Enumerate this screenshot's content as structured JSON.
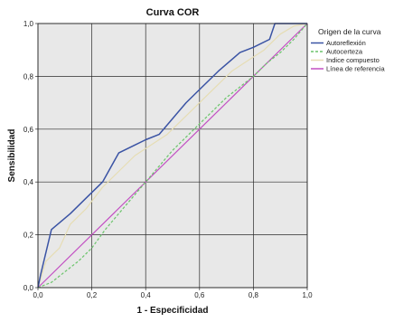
{
  "chart_data": {
    "type": "line",
    "title": "Curva COR",
    "xlabel": "1 - Especificidad",
    "ylabel": "Sensibilidad",
    "xlim": [
      0,
      1
    ],
    "ylim": [
      0,
      1
    ],
    "xticks": [
      "0,0",
      "0,2",
      "0,4",
      "0,6",
      "0,8",
      "1,0"
    ],
    "yticks": [
      "0,0",
      "0,2",
      "0,4",
      "0,6",
      "0,8",
      "1,0"
    ],
    "grid": true,
    "background": "#e8e8e8",
    "legend": {
      "title": "Origen de la curva",
      "position": "top-right",
      "entries": [
        "Autoreflexión",
        "Autocerteza",
        "Indice compuesto",
        "Línea de referencia"
      ]
    },
    "series": [
      {
        "name": "Autoreflexión",
        "color": "#3a53a4",
        "style": "solid",
        "x": [
          0,
          0.01,
          0.05,
          0.12,
          0.18,
          0.24,
          0.3,
          0.36,
          0.4,
          0.45,
          0.5,
          0.55,
          0.6,
          0.67,
          0.75,
          0.8,
          0.86,
          0.88,
          0.93,
          1.0
        ],
        "y": [
          0,
          0.05,
          0.22,
          0.28,
          0.34,
          0.4,
          0.51,
          0.54,
          0.56,
          0.58,
          0.64,
          0.7,
          0.75,
          0.82,
          0.89,
          0.91,
          0.94,
          1.0,
          1.0,
          1.0
        ]
      },
      {
        "name": "Autocerteza",
        "color": "#6bc46b",
        "style": "dashed",
        "x": [
          0,
          0.05,
          0.1,
          0.15,
          0.2,
          0.25,
          0.3,
          0.35,
          0.4,
          0.45,
          0.5,
          0.55,
          0.6,
          0.65,
          0.7,
          0.75,
          0.8,
          0.85,
          0.9,
          0.95,
          1.0
        ],
        "y": [
          0,
          0.02,
          0.06,
          0.1,
          0.15,
          0.22,
          0.28,
          0.34,
          0.4,
          0.46,
          0.52,
          0.57,
          0.62,
          0.67,
          0.72,
          0.76,
          0.8,
          0.85,
          0.89,
          0.94,
          1.0
        ]
      },
      {
        "name": "Indice compuesto",
        "color": "#e6ddb4",
        "style": "solid",
        "x": [
          0,
          0.03,
          0.08,
          0.12,
          0.18,
          0.24,
          0.3,
          0.36,
          0.42,
          0.48,
          0.54,
          0.6,
          0.66,
          0.72,
          0.78,
          0.84,
          0.9,
          0.95,
          1.0
        ],
        "y": [
          0,
          0.1,
          0.15,
          0.24,
          0.3,
          0.38,
          0.44,
          0.5,
          0.54,
          0.58,
          0.64,
          0.7,
          0.76,
          0.82,
          0.86,
          0.9,
          0.96,
          0.99,
          1.0
        ]
      },
      {
        "name": "Línea de referencia",
        "color": "#c24fc2",
        "style": "solid",
        "x": [
          0,
          1
        ],
        "y": [
          0,
          1
        ]
      }
    ]
  }
}
